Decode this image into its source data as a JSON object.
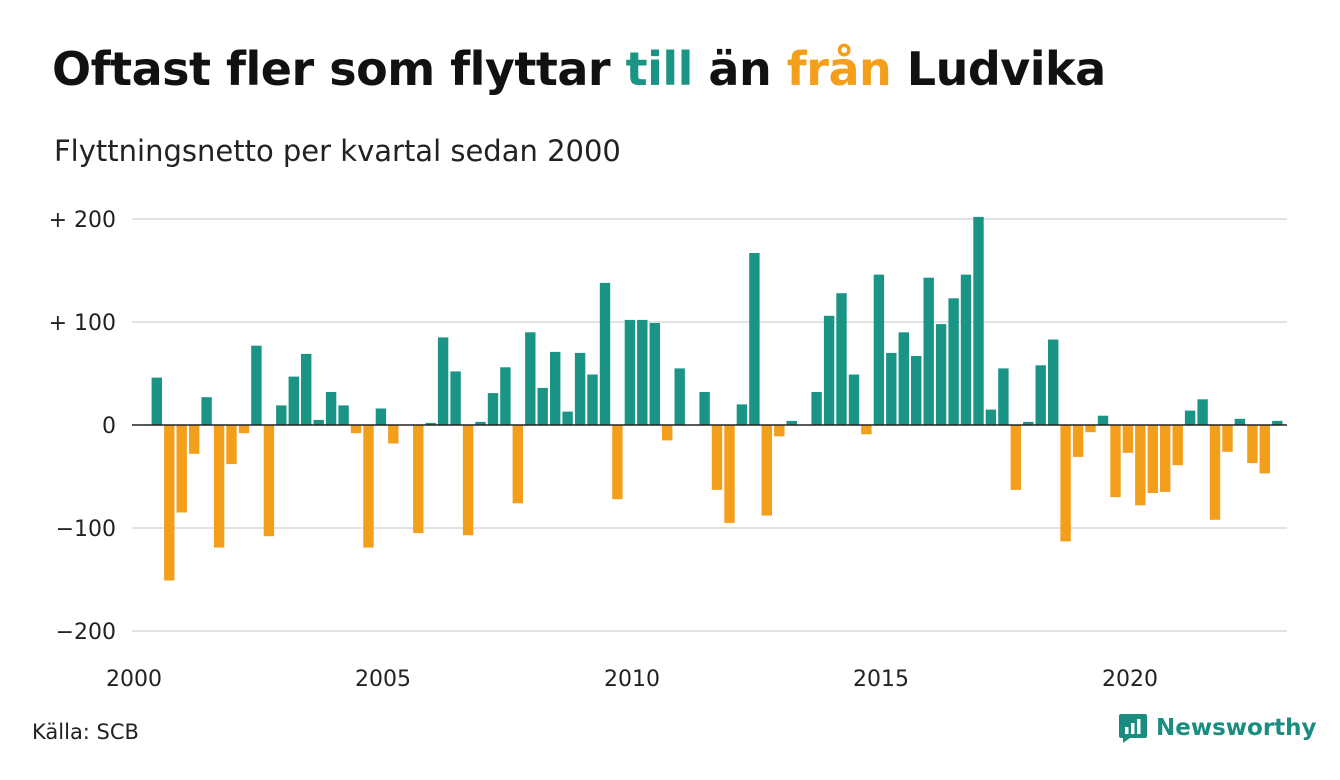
{
  "header": {
    "title_parts": [
      {
        "text": "Oftast fler som flyttar ",
        "color": "#111111"
      },
      {
        "text": "till",
        "color": "#1a9484"
      },
      {
        "text": " än ",
        "color": "#111111"
      },
      {
        "text": "från",
        "color": "#f49f1c"
      },
      {
        "text": " Ludvika",
        "color": "#111111"
      }
    ],
    "subtitle": "Flyttningsnetto per kvartal sedan 2000"
  },
  "footer": {
    "source": "Källa: SCB",
    "brand": "Newsworthy"
  },
  "colors": {
    "positive": "#1a9484",
    "negative": "#f49f1c",
    "grid": "#d9d9d9",
    "zero_line": "#222222",
    "brand": "#1a8c80"
  },
  "chart_data": {
    "type": "bar",
    "title": "Oftast fler som flyttar till än från Ludvika",
    "subtitle": "Flyttningsnetto per kvartal sedan 2000",
    "xlabel": "",
    "ylabel": "",
    "ylim": [
      -200,
      200
    ],
    "y_ticks": [
      {
        "value": 200,
        "label": "+ 200"
      },
      {
        "value": 100,
        "label": "+ 100"
      },
      {
        "value": 0,
        "label": "0"
      },
      {
        "value": -100,
        "label": "−100"
      },
      {
        "value": -200,
        "label": "−200"
      }
    ],
    "x_ticks": [
      {
        "value": 2000,
        "label": "2000"
      },
      {
        "value": 2005,
        "label": "2005"
      },
      {
        "value": 2010,
        "label": "2010"
      },
      {
        "value": 2015,
        "label": "2015"
      },
      {
        "value": 2020,
        "label": "2020"
      }
    ],
    "start": {
      "year": 2000,
      "quarter": 1
    },
    "grid": true,
    "legend": "none",
    "values": [
      46,
      -151,
      -85,
      -28,
      27,
      -119,
      -38,
      -8,
      77,
      -108,
      19,
      47,
      69,
      5,
      32,
      19,
      -8,
      -119,
      16,
      -18,
      0,
      -105,
      2,
      85,
      52,
      -107,
      3,
      31,
      56,
      -76,
      90,
      36,
      71,
      13,
      70,
      49,
      138,
      -72,
      102,
      102,
      99,
      -15,
      55,
      0,
      32,
      -63,
      -95,
      20,
      167,
      -88,
      -11,
      4,
      0,
      32,
      106,
      128,
      49,
      -9,
      146,
      70,
      90,
      67,
      143,
      98,
      123,
      146,
      202,
      15,
      55,
      -63,
      3,
      58,
      83,
      -113,
      -31,
      -7,
      9,
      -70,
      -27,
      -78,
      -66,
      -65,
      -39,
      14,
      25,
      -92,
      -26,
      6,
      -37,
      -47,
      4
    ]
  }
}
